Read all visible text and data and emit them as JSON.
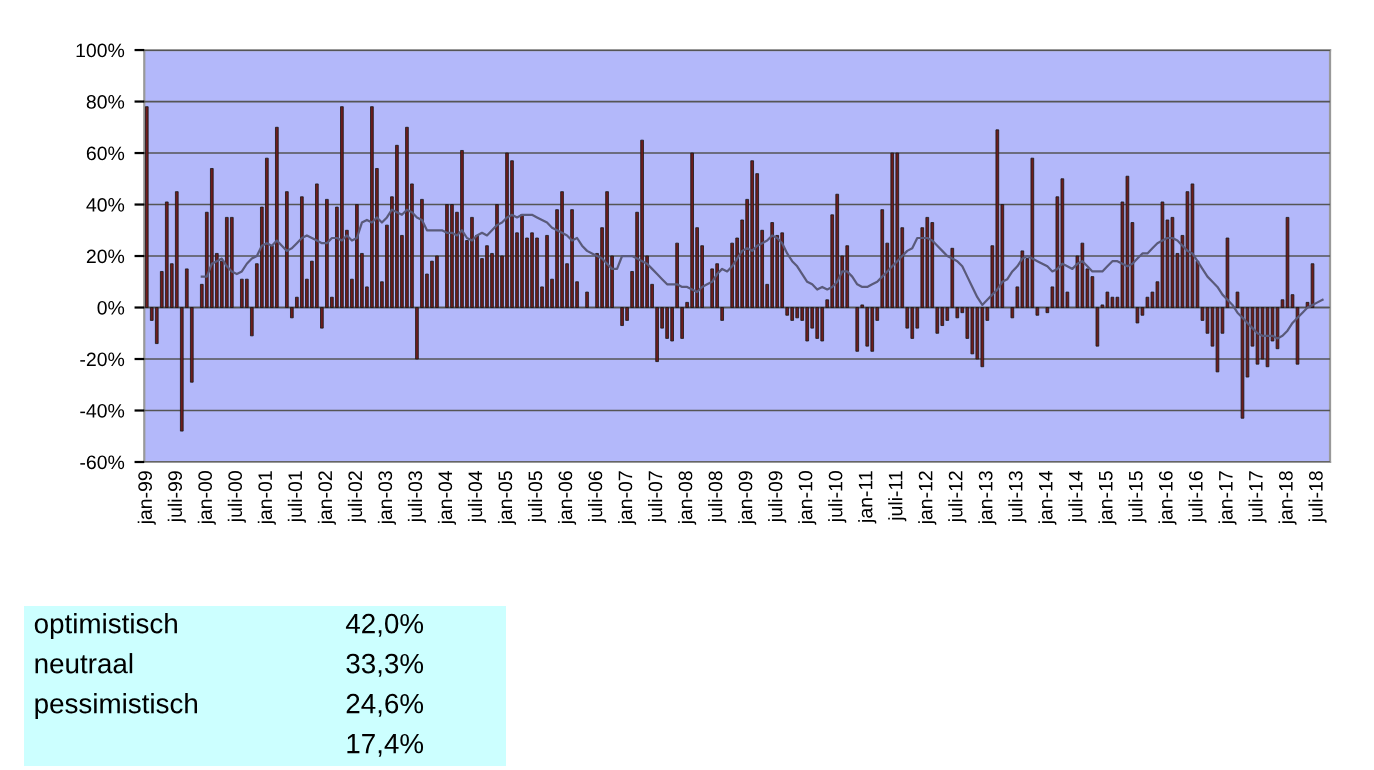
{
  "chart_data": {
    "type": "bar",
    "categories": [
      "jan-99",
      null,
      null,
      null,
      null,
      null,
      "juli-99",
      null,
      null,
      null,
      null,
      null,
      "jan-00",
      null,
      null,
      null,
      null,
      null,
      "juli-00",
      null,
      null,
      null,
      null,
      null,
      "jan-01",
      null,
      null,
      null,
      null,
      null,
      "juli-01",
      null,
      null,
      null,
      null,
      null,
      "jan-02",
      null,
      null,
      null,
      null,
      null,
      "juli-02",
      null,
      null,
      null,
      null,
      null,
      "jan-03",
      null,
      null,
      null,
      null,
      null,
      "juli-03",
      null,
      null,
      null,
      null,
      null,
      "jan-04",
      null,
      null,
      null,
      null,
      null,
      "juli-04",
      null,
      null,
      null,
      null,
      null,
      "jan-05",
      null,
      null,
      null,
      null,
      null,
      "juli-05",
      null,
      null,
      null,
      null,
      null,
      "jan-06",
      null,
      null,
      null,
      null,
      null,
      "juli-06",
      null,
      null,
      null,
      null,
      null,
      "jan-07",
      null,
      null,
      null,
      null,
      null,
      "juli-07",
      null,
      null,
      null,
      null,
      null,
      "jan-08",
      null,
      null,
      null,
      null,
      null,
      "juli-08",
      null,
      null,
      null,
      null,
      null,
      "jan-09",
      null,
      null,
      null,
      null,
      null,
      "juli-09",
      null,
      null,
      null,
      null,
      null,
      "jan-10",
      null,
      null,
      null,
      null,
      null,
      "juli-10",
      null,
      null,
      null,
      null,
      null,
      "jan-11",
      null,
      null,
      null,
      null,
      null,
      "juli-11",
      null,
      null,
      null,
      null,
      null,
      "jan-12",
      null,
      null,
      null,
      null,
      null,
      "juli-12",
      null,
      null,
      null,
      null,
      null,
      "jan-13",
      null,
      null,
      null,
      null,
      null,
      "juli-13",
      null,
      null,
      null,
      null,
      null,
      "jan-14",
      null,
      null,
      null,
      null,
      null,
      "juli-14",
      null,
      null,
      null,
      null,
      null,
      "jan-15",
      null,
      null,
      null,
      null,
      null,
      "juli-15",
      null,
      null,
      null,
      null,
      null,
      "jan-16",
      null,
      null,
      null,
      null,
      null,
      "juli-16",
      null,
      null,
      null,
      null,
      null,
      "jan-17",
      null,
      null,
      null,
      null,
      null,
      "juli-17",
      null,
      null,
      null,
      null,
      null,
      "jan-18",
      null,
      null,
      null,
      null,
      null,
      "juli-18",
      null,
      null
    ],
    "series": [
      {
        "color": "#6e1c1c",
        "values": [
          78,
          -5,
          -14,
          14,
          41,
          17,
          45,
          -48,
          15,
          -29,
          null,
          9,
          37,
          54,
          21,
          18,
          35,
          35,
          null,
          11,
          11,
          -11,
          17,
          39,
          58,
          24,
          70,
          null,
          45,
          -4,
          4,
          43,
          11,
          18,
          48,
          -8,
          42,
          4,
          39,
          78,
          30,
          11,
          40,
          21,
          8,
          78,
          54,
          10,
          32,
          43,
          63,
          28,
          70,
          48,
          -20,
          42,
          13,
          18,
          20,
          null,
          40,
          40,
          37,
          61,
          26,
          35,
          28,
          19,
          24,
          21,
          40,
          20,
          60,
          57,
          29,
          36,
          27,
          29,
          27,
          8,
          28,
          11,
          38,
          45,
          17,
          38,
          10,
          null,
          6,
          null,
          21,
          31,
          45,
          20,
          null,
          -7,
          -5,
          14,
          37,
          65,
          20,
          9,
          -21,
          -8,
          -12,
          -13,
          25,
          -12,
          2,
          60,
          31,
          24,
          null,
          15,
          17,
          -5,
          null,
          25,
          27,
          34,
          42,
          57,
          52,
          30,
          9,
          33,
          28,
          29,
          -3,
          -5,
          -4,
          -5,
          -13,
          -8,
          -12,
          -13,
          3,
          36,
          44,
          20,
          24,
          null,
          -17,
          1,
          -15,
          -17,
          -5,
          38,
          25,
          60,
          60,
          31,
          -8,
          -12,
          -8,
          31,
          35,
          33,
          -10,
          -7,
          -5,
          23,
          -4,
          -2,
          -12,
          -18,
          -20,
          -23,
          -5,
          24,
          69,
          40,
          null,
          -4,
          8,
          22,
          19,
          58,
          -3,
          null,
          -2,
          8,
          43,
          50,
          6,
          null,
          20,
          25,
          15,
          12,
          -15,
          1,
          6,
          4,
          4,
          41,
          51,
          33,
          -6,
          -3,
          4,
          6,
          10,
          41,
          34,
          35,
          21,
          28,
          45,
          48,
          18,
          -5,
          -10,
          -15,
          -25,
          -10,
          27,
          null,
          6,
          -43,
          -27,
          -15,
          -22,
          -20,
          -23,
          -13,
          -16,
          3,
          35,
          5,
          -22,
          null,
          2,
          17,
          null,
          null,
          null
        ]
      },
      {
        "type": "line",
        "color": "#5a5a7a",
        "values": [
          null,
          null,
          null,
          null,
          null,
          null,
          null,
          null,
          null,
          null,
          null,
          12,
          12,
          17,
          18,
          19,
          16,
          14,
          13,
          14,
          17,
          19,
          20,
          24,
          25,
          24,
          26,
          24,
          22,
          23,
          25,
          27,
          28,
          27,
          26,
          25,
          25,
          27,
          27,
          26,
          28,
          26,
          27,
          33,
          34,
          33,
          35,
          33,
          35,
          38,
          37,
          36,
          38,
          37,
          35,
          34,
          30,
          30,
          30,
          30,
          29,
          29,
          28,
          30,
          27,
          26,
          28,
          29,
          28,
          30,
          32,
          33,
          35,
          36,
          35,
          36,
          36,
          36,
          35,
          34,
          33,
          31,
          30,
          29,
          28,
          26,
          27,
          24,
          22,
          21,
          20,
          19,
          17,
          15,
          15,
          20,
          20,
          20,
          19,
          18,
          17,
          15,
          13,
          11,
          9,
          9,
          9,
          8,
          8,
          7,
          6,
          8,
          9,
          10,
          13,
          15,
          14,
          16,
          19,
          22,
          23,
          22,
          24,
          25,
          26,
          28,
          27,
          25,
          21,
          18,
          16,
          13,
          10,
          9,
          7,
          8,
          7,
          8,
          10,
          14,
          14,
          12,
          9,
          8,
          8,
          9,
          10,
          12,
          14,
          16,
          18,
          20,
          22,
          23,
          27,
          27,
          27,
          26,
          24,
          22,
          20,
          19,
          18,
          16,
          12,
          8,
          4,
          1,
          3,
          5,
          7,
          10,
          11,
          14,
          16,
          19,
          20,
          19,
          18,
          17,
          16,
          14,
          15,
          17,
          16,
          15,
          17,
          18,
          16,
          14,
          14,
          14,
          16,
          18,
          18,
          17,
          16,
          17,
          19,
          21,
          21,
          23,
          25,
          26,
          27,
          27,
          26,
          24,
          22,
          21,
          18,
          15,
          12,
          10,
          8,
          5,
          3,
          1,
          -2,
          -4,
          -6,
          -8,
          -10,
          -11,
          -11,
          -11,
          -12,
          -11,
          -9,
          -6,
          -4,
          -2,
          0,
          1,
          2,
          3,
          null
        ]
      }
    ],
    "ylim": [
      -60,
      100
    ],
    "yticks": [
      {
        "value": -60,
        "label": "-60%"
      },
      {
        "value": -40,
        "label": "-40%"
      },
      {
        "value": -20,
        "label": "-20%"
      },
      {
        "value": 0,
        "label": "0%"
      },
      {
        "value": 20,
        "label": "20%"
      },
      {
        "value": 40,
        "label": "40%"
      },
      {
        "value": 60,
        "label": "60%"
      },
      {
        "value": 80,
        "label": "80%"
      },
      {
        "value": 100,
        "label": "100%"
      }
    ],
    "grid": "y",
    "annotations": [
      "optimistisch",
      "42,0%",
      "neutraal",
      "33,3%",
      "pessimistisch",
      "24,6%",
      "17,4%"
    ]
  }
}
